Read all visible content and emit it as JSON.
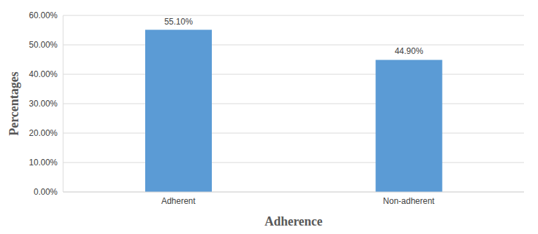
{
  "chart_data": {
    "type": "bar",
    "x_label": "Adherence",
    "y_label": "Percentages",
    "categories": [
      "Adherent",
      "Non-adherent"
    ],
    "values": [
      55.1,
      44.9
    ],
    "value_labels": [
      "55.10%",
      "44.90%"
    ],
    "data_labels": true,
    "color": "#5b9bd5",
    "ylim": [
      0,
      60
    ],
    "yticks": [
      {
        "value": 0,
        "label": "0.00%"
      },
      {
        "value": 10,
        "label": "10.00%"
      },
      {
        "value": 20,
        "label": "20.00%"
      },
      {
        "value": 30,
        "label": "30.00%"
      },
      {
        "value": 40,
        "label": "40.00%"
      },
      {
        "value": 50,
        "label": "50.00%"
      },
      {
        "value": 60,
        "label": "60.00%"
      }
    ],
    "grid": true
  }
}
